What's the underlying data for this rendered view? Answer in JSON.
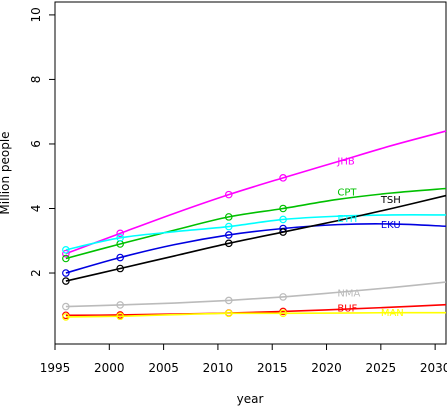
{
  "chart_data": {
    "type": "line",
    "title": "",
    "xlabel": "year",
    "ylabel": "Million people",
    "xlim": [
      1995,
      2031
    ],
    "ylim": [
      -0.2,
      10.4
    ],
    "x_ticks": [
      1995,
      2000,
      2005,
      2010,
      2015,
      2020,
      2025,
      2030
    ],
    "y_ticks": [
      2,
      4,
      6,
      8,
      10
    ],
    "grid": false,
    "legend": "inline labels",
    "series": [
      {
        "name": "JHB",
        "color": "#ff00ff",
        "points": [
          [
            1996,
            2.6
          ],
          [
            2001,
            3.23
          ],
          [
            2011,
            4.43
          ],
          [
            2016,
            4.95
          ]
        ],
        "curve": [
          [
            1996,
            2.6
          ],
          [
            2001,
            3.23
          ],
          [
            2006,
            3.85
          ],
          [
            2011,
            4.43
          ],
          [
            2016,
            4.95
          ],
          [
            2021,
            5.45
          ],
          [
            2026,
            5.95
          ],
          [
            2031,
            6.4
          ]
        ]
      },
      {
        "name": "CPT",
        "color": "#00c000",
        "points": [
          [
            1996,
            2.45
          ],
          [
            2001,
            2.9
          ],
          [
            2011,
            3.74
          ],
          [
            2016,
            4.0
          ]
        ],
        "curve": [
          [
            1996,
            2.45
          ],
          [
            2001,
            2.9
          ],
          [
            2006,
            3.33
          ],
          [
            2011,
            3.74
          ],
          [
            2016,
            4.0
          ],
          [
            2021,
            4.28
          ],
          [
            2026,
            4.48
          ],
          [
            2031,
            4.62
          ]
        ]
      },
      {
        "name": "ETH",
        "color": "#00ffff",
        "points": [
          [
            1996,
            2.72
          ],
          [
            2001,
            3.09
          ],
          [
            2011,
            3.44
          ],
          [
            2016,
            3.66
          ]
        ],
        "curve": [
          [
            1996,
            2.72
          ],
          [
            2001,
            3.09
          ],
          [
            2006,
            3.28
          ],
          [
            2011,
            3.44
          ],
          [
            2016,
            3.66
          ],
          [
            2021,
            3.76
          ],
          [
            2026,
            3.8
          ],
          [
            2031,
            3.8
          ]
        ]
      },
      {
        "name": "EKU",
        "color": "#0000e0",
        "points": [
          [
            1996,
            2.0
          ],
          [
            2001,
            2.48
          ],
          [
            2011,
            3.18
          ],
          [
            2016,
            3.38
          ]
        ],
        "curve": [
          [
            1996,
            2.0
          ],
          [
            2001,
            2.48
          ],
          [
            2006,
            2.88
          ],
          [
            2011,
            3.18
          ],
          [
            2016,
            3.38
          ],
          [
            2021,
            3.5
          ],
          [
            2026,
            3.52
          ],
          [
            2031,
            3.45
          ]
        ]
      },
      {
        "name": "TSH",
        "color": "#000000",
        "points": [
          [
            1996,
            1.75
          ],
          [
            2001,
            2.14
          ],
          [
            2011,
            2.92
          ],
          [
            2016,
            3.27
          ]
        ],
        "curve": [
          [
            1996,
            1.75
          ],
          [
            2001,
            2.14
          ],
          [
            2006,
            2.53
          ],
          [
            2011,
            2.92
          ],
          [
            2016,
            3.27
          ],
          [
            2021,
            3.62
          ],
          [
            2026,
            4.0
          ],
          [
            2031,
            4.4
          ]
        ]
      },
      {
        "name": "NMA",
        "color": "#bbbbbb",
        "points": [
          [
            1996,
            0.96
          ],
          [
            2001,
            1.01
          ],
          [
            2011,
            1.15
          ],
          [
            2016,
            1.26
          ]
        ],
        "curve": [
          [
            1996,
            0.96
          ],
          [
            2001,
            1.01
          ],
          [
            2006,
            1.07
          ],
          [
            2011,
            1.15
          ],
          [
            2016,
            1.26
          ],
          [
            2021,
            1.4
          ],
          [
            2026,
            1.55
          ],
          [
            2031,
            1.72
          ]
        ]
      },
      {
        "name": "BUF",
        "color": "#ff0000",
        "points": [
          [
            1996,
            0.69
          ],
          [
            2001,
            0.7
          ],
          [
            2011,
            0.76
          ],
          [
            2016,
            0.81
          ]
        ],
        "curve": [
          [
            1996,
            0.69
          ],
          [
            2001,
            0.7
          ],
          [
            2006,
            0.73
          ],
          [
            2011,
            0.76
          ],
          [
            2016,
            0.81
          ],
          [
            2021,
            0.87
          ],
          [
            2026,
            0.94
          ],
          [
            2031,
            1.02
          ]
        ]
      },
      {
        "name": "MAN",
        "color": "#ffff00",
        "points": [
          [
            1996,
            0.64
          ],
          [
            2001,
            0.66
          ],
          [
            2011,
            0.75
          ],
          [
            2016,
            0.75
          ]
        ],
        "curve": [
          [
            1996,
            0.64
          ],
          [
            2001,
            0.66
          ],
          [
            2006,
            0.71
          ],
          [
            2011,
            0.75
          ],
          [
            2016,
            0.75
          ],
          [
            2021,
            0.76
          ],
          [
            2026,
            0.77
          ],
          [
            2031,
            0.77
          ]
        ]
      }
    ]
  }
}
